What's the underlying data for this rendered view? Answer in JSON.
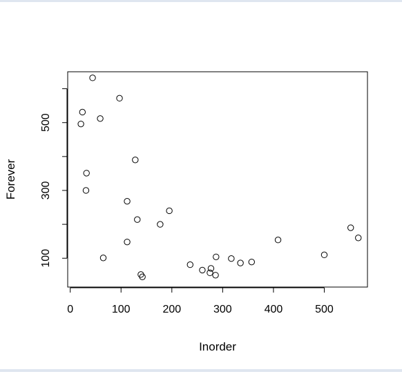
{
  "chart_data": {
    "type": "scatter",
    "title": "",
    "xlabel": "Inorder",
    "ylabel": "Forever",
    "xlim": [
      -5,
      585
    ],
    "ylim": [
      15,
      650
    ],
    "x_ticks": [
      0,
      100,
      200,
      300,
      400,
      500
    ],
    "y_ticks": [
      100,
      200,
      300,
      400,
      500,
      600
    ],
    "y_tick_labels": [
      {
        "value": 100,
        "label": "100"
      },
      {
        "value": 300,
        "label": "300"
      },
      {
        "value": 500,
        "label": "500"
      }
    ],
    "marker": "open-circle",
    "grid": false,
    "legend": "none",
    "points": [
      {
        "x": 44,
        "y": 632
      },
      {
        "x": 97,
        "y": 572
      },
      {
        "x": 24,
        "y": 531
      },
      {
        "x": 59,
        "y": 512
      },
      {
        "x": 21,
        "y": 496
      },
      {
        "x": 128,
        "y": 390
      },
      {
        "x": 32,
        "y": 351
      },
      {
        "x": 31,
        "y": 300
      },
      {
        "x": 112,
        "y": 268
      },
      {
        "x": 195,
        "y": 240
      },
      {
        "x": 132,
        "y": 214
      },
      {
        "x": 177,
        "y": 200
      },
      {
        "x": 552,
        "y": 190
      },
      {
        "x": 567,
        "y": 160
      },
      {
        "x": 409,
        "y": 154
      },
      {
        "x": 112,
        "y": 148
      },
      {
        "x": 500,
        "y": 110
      },
      {
        "x": 65,
        "y": 101
      },
      {
        "x": 287,
        "y": 104
      },
      {
        "x": 317,
        "y": 99
      },
      {
        "x": 357,
        "y": 89
      },
      {
        "x": 335,
        "y": 86
      },
      {
        "x": 236,
        "y": 81
      },
      {
        "x": 277,
        "y": 70
      },
      {
        "x": 260,
        "y": 65
      },
      {
        "x": 275,
        "y": 57
      },
      {
        "x": 286,
        "y": 50
      },
      {
        "x": 139,
        "y": 52
      },
      {
        "x": 142,
        "y": 45
      }
    ]
  }
}
